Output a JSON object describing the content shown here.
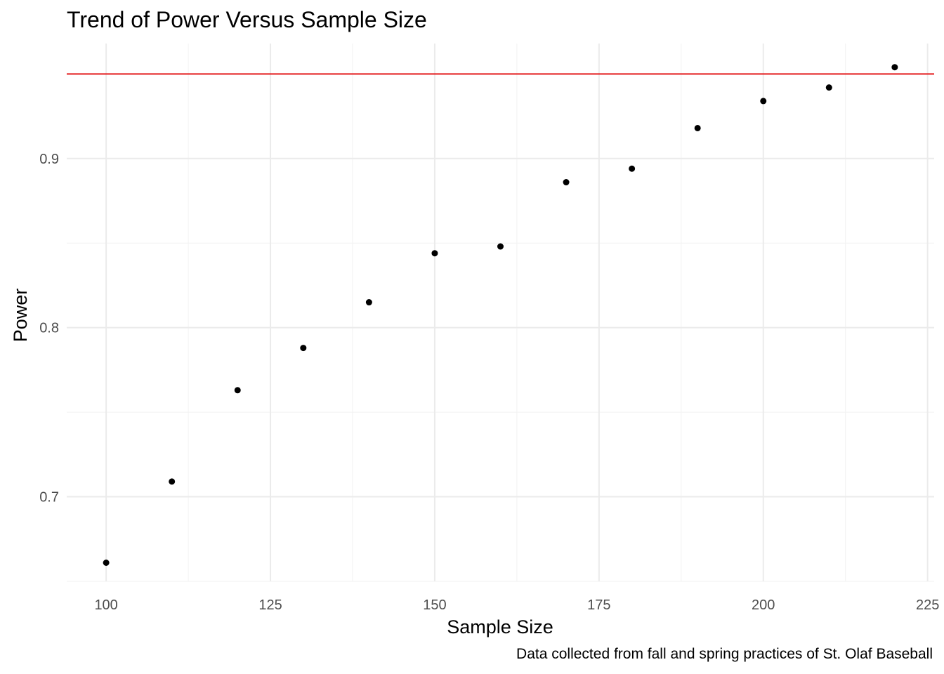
{
  "chart_data": {
    "type": "scatter",
    "title": "Trend of Power Versus Sample Size",
    "xlabel": "Sample Size",
    "ylabel": "Power",
    "caption": "Data collected from fall and spring practices of St. Olaf Baseball",
    "xlim": [
      94,
      226
    ],
    "ylim": [
      0.65,
      0.968
    ],
    "x_ticks": [
      100,
      125,
      150,
      175,
      200,
      225
    ],
    "x_tick_labels": [
      "100",
      "125",
      "150",
      "175",
      "200",
      "225"
    ],
    "y_ticks": [
      0.7,
      0.8,
      0.9
    ],
    "y_tick_labels": [
      "0.7",
      "0.8",
      "0.9"
    ],
    "grid": true,
    "reference_line": {
      "y": 0.95,
      "color": "#e41a1c"
    },
    "point_color": "#000000",
    "x": [
      100,
      110,
      120,
      130,
      140,
      150,
      160,
      170,
      180,
      190,
      200,
      210,
      220
    ],
    "y": [
      0.661,
      0.709,
      0.763,
      0.788,
      0.815,
      0.844,
      0.848,
      0.886,
      0.894,
      0.918,
      0.934,
      0.942,
      0.954
    ]
  }
}
